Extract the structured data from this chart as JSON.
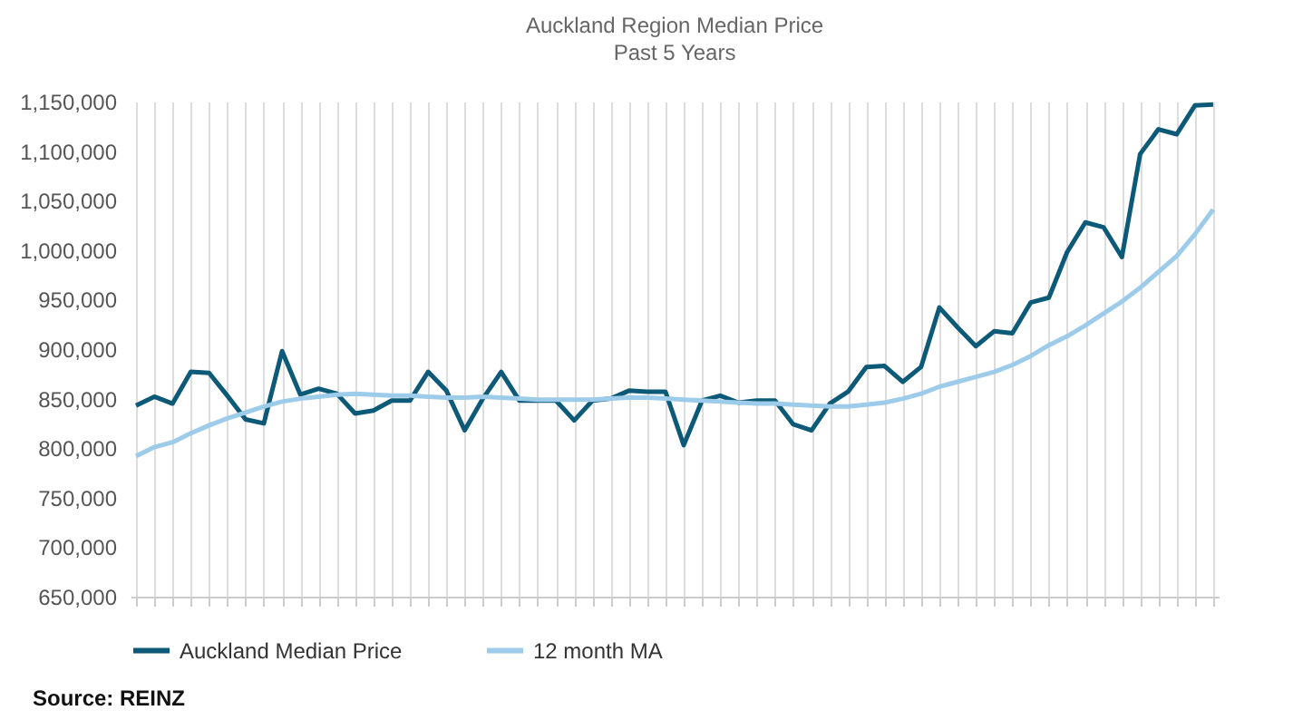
{
  "chart_data": {
    "type": "line",
    "title": "Auckland Region Median Price",
    "subtitle": "Past 5 Years",
    "annotations": [
      "Source: REINZ"
    ],
    "categories": [
      null,
      null,
      null,
      null,
      null,
      null,
      null,
      null,
      null,
      null,
      null,
      null,
      null,
      null,
      null,
      null,
      null,
      null,
      null,
      null,
      null,
      null,
      null,
      null,
      null,
      null,
      null,
      null,
      null,
      null,
      null,
      null,
      null,
      null,
      null,
      null,
      null,
      null,
      null,
      null,
      null,
      null,
      null,
      null,
      null,
      null,
      null,
      null,
      null,
      null,
      null,
      null,
      null,
      null,
      null,
      null,
      null,
      null,
      null,
      null
    ],
    "series": [
      {
        "name": "Auckland Median Price",
        "color": "#0d5a78",
        "values": [
          843000,
          852000,
          845000,
          877000,
          876000,
          853000,
          829000,
          825000,
          898000,
          854000,
          860000,
          855000,
          835000,
          838000,
          848000,
          848000,
          877000,
          858000,
          818000,
          850000,
          877000,
          848000,
          848000,
          848000,
          828000,
          848000,
          850000,
          858000,
          857000,
          857000,
          803000,
          848000,
          853000,
          846000,
          848000,
          848000,
          824000,
          818000,
          845000,
          857000,
          882000,
          883000,
          867000,
          882000,
          942000,
          922000,
          903000,
          918000,
          916000,
          947000,
          952000,
          998000,
          1028000,
          1023000,
          993000,
          1097000,
          1122000,
          1117000,
          1146000,
          1147000
        ]
      },
      {
        "name": "12 month MA",
        "color": "#9dcbea",
        "values": [
          792000,
          801000,
          806000,
          815000,
          823000,
          830000,
          836000,
          842000,
          847000,
          850000,
          852000,
          854000,
          855000,
          854000,
          853000,
          853000,
          852000,
          851000,
          851000,
          852000,
          851000,
          850000,
          849000,
          849000,
          849000,
          849000,
          850000,
          851000,
          851000,
          850000,
          849000,
          848000,
          847000,
          846000,
          845000,
          845000,
          844000,
          843000,
          842000,
          842000,
          844000,
          846000,
          850000,
          855000,
          862000,
          867000,
          872000,
          877000,
          884000,
          893000,
          904000,
          913000,
          924000,
          936000,
          948000,
          962000,
          978000,
          994000,
          1016000,
          1041000
        ]
      }
    ],
    "ylim": [
      650000,
      1150000
    ],
    "yticks": [
      {
        "value": 650000,
        "label": "650,000"
      },
      {
        "value": 700000,
        "label": "700,000"
      },
      {
        "value": 750000,
        "label": "750,000"
      },
      {
        "value": 800000,
        "label": "800,000"
      },
      {
        "value": 850000,
        "label": "850,000"
      },
      {
        "value": 900000,
        "label": "900,000"
      },
      {
        "value": 950000,
        "label": "950,000"
      },
      {
        "value": 1000000,
        "label": "1,000,000"
      },
      {
        "value": 1050000,
        "label": "1,050,000"
      },
      {
        "value": 1100000,
        "label": "1,100,000"
      },
      {
        "value": 1150000,
        "label": "1,150,000"
      }
    ],
    "grid": "x",
    "legend": "bottom",
    "tick_labels": "y",
    "marker": "none",
    "line_style": "solid"
  }
}
